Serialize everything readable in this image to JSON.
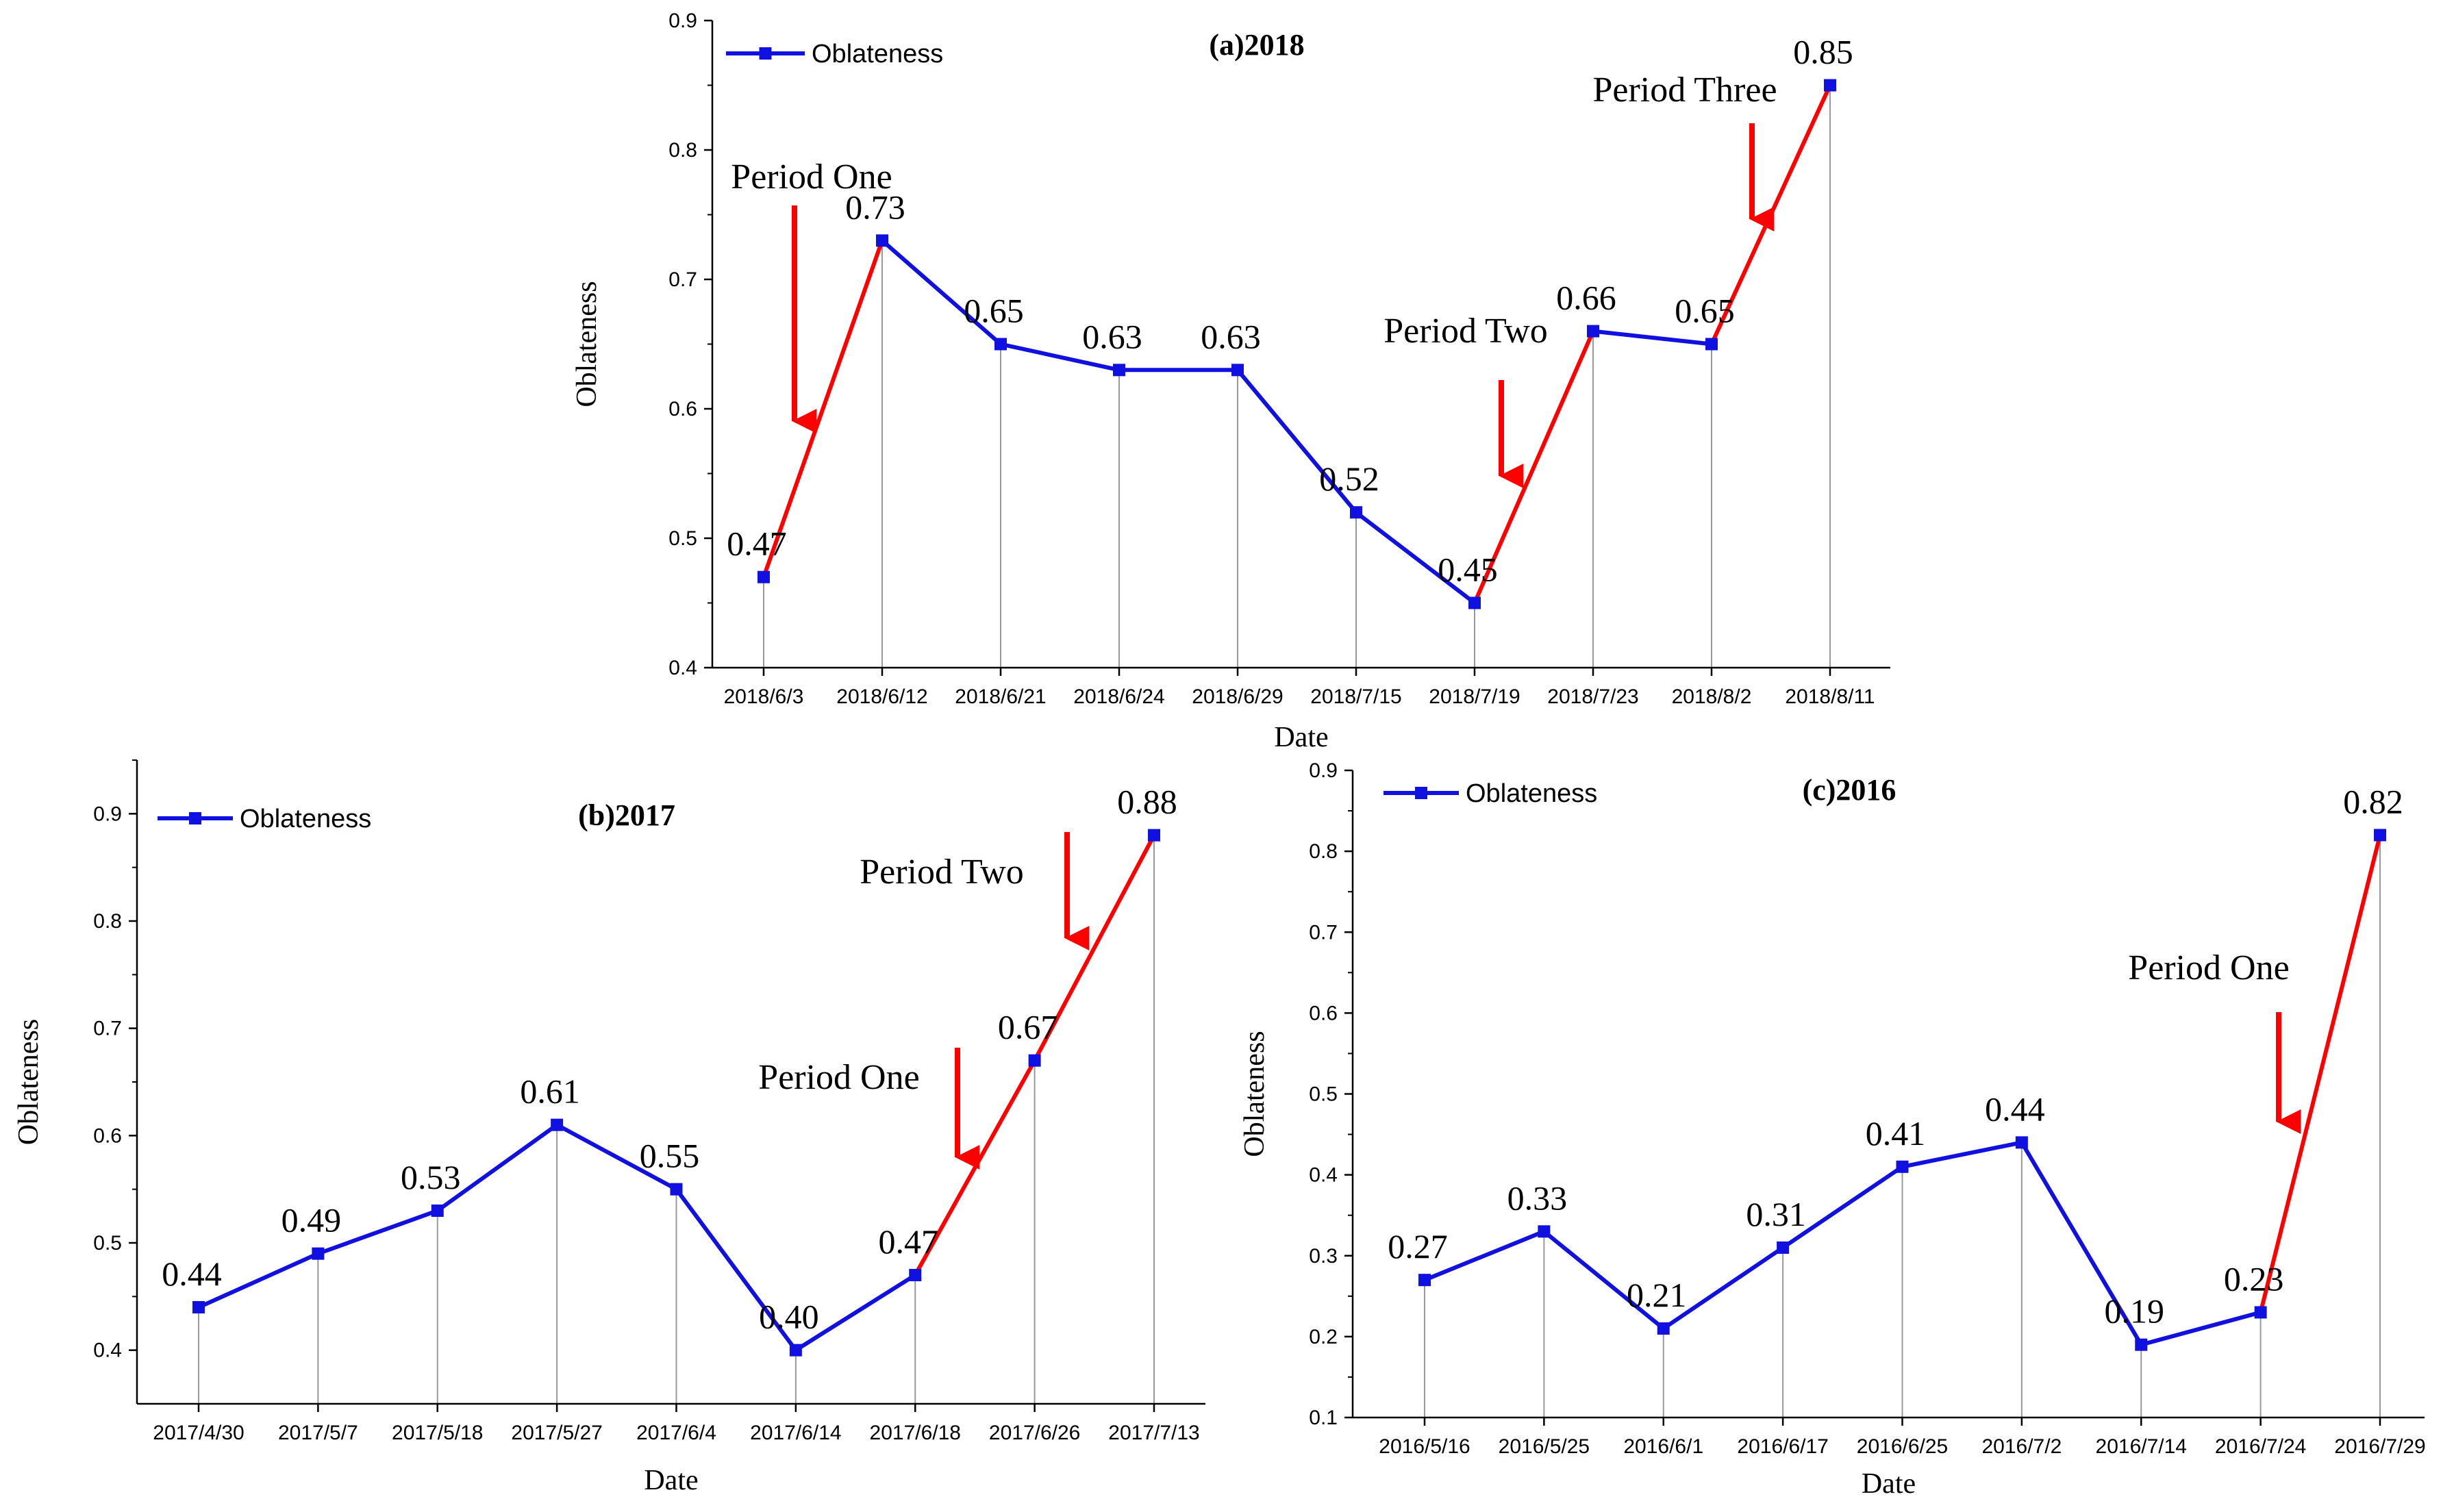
{
  "colors": {
    "series": "#1010e0",
    "highlight": "#ff0000",
    "drop_line": "#999999",
    "axis": "#000000"
  },
  "chart_data": [
    {
      "type": "line",
      "title": "(a)2018",
      "xlabel": "Date",
      "ylabel": "Oblateness",
      "legend": "top-left",
      "ylim": [
        0.4,
        0.9
      ],
      "yticks": [
        "0.4",
        "0.5",
        "0.6",
        "0.7",
        "0.8",
        "0.9"
      ],
      "categories": [
        "2018/6/3",
        "2018/6/12",
        "2018/6/21",
        "2018/6/24",
        "2018/6/29",
        "2018/7/15",
        "2018/7/19",
        "2018/7/23",
        "2018/8/2",
        "2018/8/11"
      ],
      "series": [
        {
          "name": "Oblateness",
          "values": [
            0.47,
            0.73,
            0.65,
            0.63,
            0.63,
            0.52,
            0.45,
            0.66,
            0.65,
            0.85
          ]
        }
      ],
      "value_labels": [
        "0.47",
        "0.73",
        "0.65",
        "0.63",
        "0.63",
        "0.52",
        "0.45",
        "0.66",
        "0.65",
        "0.85"
      ],
      "red_segments": [
        [
          0,
          1
        ],
        [
          6,
          7
        ],
        [
          8,
          9
        ]
      ],
      "annotations": [
        {
          "text": "Period One",
          "segment": [
            0,
            1
          ]
        },
        {
          "text": "Period Two",
          "segment": [
            6,
            7
          ]
        },
        {
          "text": "Period Three",
          "segment": [
            8,
            9
          ]
        }
      ]
    },
    {
      "type": "line",
      "title": "(b)2017",
      "xlabel": "Date",
      "ylabel": "Oblateness",
      "legend": "top-left",
      "ylim": [
        0.35,
        0.95
      ],
      "yticks": [
        "0.4",
        "0.5",
        "0.6",
        "0.7",
        "0.8",
        "0.9"
      ],
      "categories": [
        "2017/4/30",
        "2017/5/7",
        "2017/5/18",
        "2017/5/27",
        "2017/6/4",
        "2017/6/14",
        "2017/6/18",
        "2017/6/26",
        "2017/7/13"
      ],
      "series": [
        {
          "name": "Oblateness",
          "values": [
            0.44,
            0.49,
            0.53,
            0.61,
            0.55,
            0.4,
            0.47,
            0.67,
            0.88
          ]
        }
      ],
      "value_labels": [
        "0.44",
        "0.49",
        "0.53",
        "0.61",
        "0.55",
        "0.40",
        "0.47",
        "0.67",
        "0.88"
      ],
      "red_segments": [
        [
          6,
          7
        ],
        [
          7,
          8
        ]
      ],
      "annotations": [
        {
          "text": "Period One",
          "segment": [
            6,
            7
          ]
        },
        {
          "text": "Period Two",
          "segment": [
            7,
            8
          ]
        }
      ]
    },
    {
      "type": "line",
      "title": "(c)2016",
      "xlabel": "Date",
      "ylabel": "Oblateness",
      "legend": "top-left",
      "ylim": [
        0.1,
        0.9
      ],
      "yticks": [
        "0.1",
        "0.2",
        "0.3",
        "0.4",
        "0.5",
        "0.6",
        "0.7",
        "0.8",
        "0.9"
      ],
      "categories": [
        "2016/5/16",
        "2016/5/25",
        "2016/6/1",
        "2016/6/17",
        "2016/6/25",
        "2016/7/2",
        "2016/7/14",
        "2016/7/24",
        "2016/7/29"
      ],
      "series": [
        {
          "name": "Oblateness",
          "values": [
            0.27,
            0.33,
            0.21,
            0.31,
            0.41,
            0.44,
            0.19,
            0.23,
            0.82
          ]
        }
      ],
      "value_labels": [
        "0.27",
        "0.33",
        "0.21",
        "0.31",
        "0.41",
        "0.44",
        "0.19",
        "0.23",
        "0.82"
      ],
      "red_segments": [
        [
          7,
          8
        ]
      ],
      "annotations": [
        {
          "text": "Period One",
          "segment": [
            7,
            8
          ]
        }
      ]
    }
  ]
}
